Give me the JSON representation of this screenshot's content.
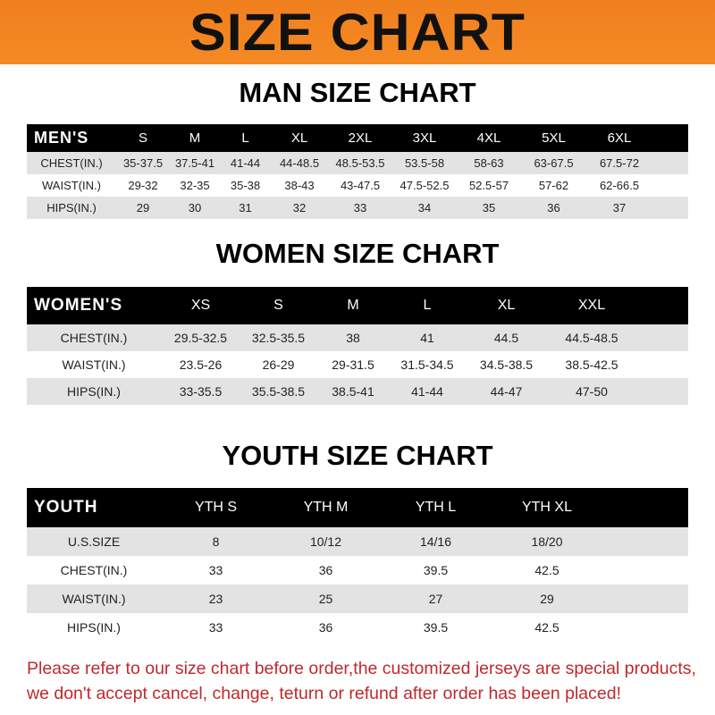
{
  "title": "SIZE CHART",
  "men": {
    "title": "MAN SIZE CHART",
    "header": "MEN'S",
    "sizes": [
      "S",
      "M",
      "L",
      "XL",
      "2XL",
      "3XL",
      "4XL",
      "5XL",
      "6XL"
    ],
    "rows": [
      {
        "label": "CHEST(IN.)",
        "values": [
          "35-37.5",
          "37.5-41",
          "41-44",
          "44-48.5",
          "48.5-53.5",
          "53.5-58",
          "58-63",
          "63-67.5",
          "67.5-72"
        ]
      },
      {
        "label": "WAIST(IN.)",
        "values": [
          "29-32",
          "32-35",
          "35-38",
          "38-43",
          "43-47.5",
          "47.5-52.5",
          "52.5-57",
          "57-62",
          "62-66.5"
        ]
      },
      {
        "label": "HIPS(IN.)",
        "values": [
          "29",
          "30",
          "31",
          "32",
          "33",
          "34",
          "35",
          "36",
          "37"
        ]
      }
    ]
  },
  "women": {
    "title": "WOMEN SIZE CHART",
    "header": "WOMEN'S",
    "sizes": [
      "XS",
      "S",
      "M",
      "L",
      "XL",
      "XXL"
    ],
    "rows": [
      {
        "label": "CHEST(IN.)",
        "values": [
          "29.5-32.5",
          "32.5-35.5",
          "38",
          "41",
          "44.5",
          "44.5-48.5"
        ]
      },
      {
        "label": "WAIST(IN.)",
        "values": [
          "23.5-26",
          "26-29",
          "29-31.5",
          "31.5-34.5",
          "34.5-38.5",
          "38.5-42.5"
        ]
      },
      {
        "label": "HIPS(IN.)",
        "values": [
          "33-35.5",
          "35.5-38.5",
          "38.5-41",
          "41-44",
          "44-47",
          "47-50"
        ]
      }
    ]
  },
  "youth": {
    "title": "YOUTH SIZE CHART",
    "header": "YOUTH",
    "sizes": [
      "YTH S",
      "YTH M",
      "YTH L",
      "YTH XL"
    ],
    "rows": [
      {
        "label": "U.S.SIZE",
        "values": [
          "8",
          "10/12",
          "14/16",
          "18/20"
        ]
      },
      {
        "label": "CHEST(IN.)",
        "values": [
          "33",
          "36",
          "39.5",
          "42.5"
        ]
      },
      {
        "label": "WAIST(IN.)",
        "values": [
          "23",
          "25",
          "27",
          "29"
        ]
      },
      {
        "label": "HIPS(IN.)",
        "values": [
          "33",
          "36",
          "39.5",
          "42.5"
        ]
      }
    ]
  },
  "notice": [
    "Please refer to our size chart before order,the customized jerseys are special products,",
    "we don't accept cancel, change, teturn or refund after order has been placed!"
  ],
  "colors": {
    "banner": "#f07f1e",
    "notice": "#c0282c",
    "header": "#000000",
    "stripe": "#e3e3e3"
  }
}
